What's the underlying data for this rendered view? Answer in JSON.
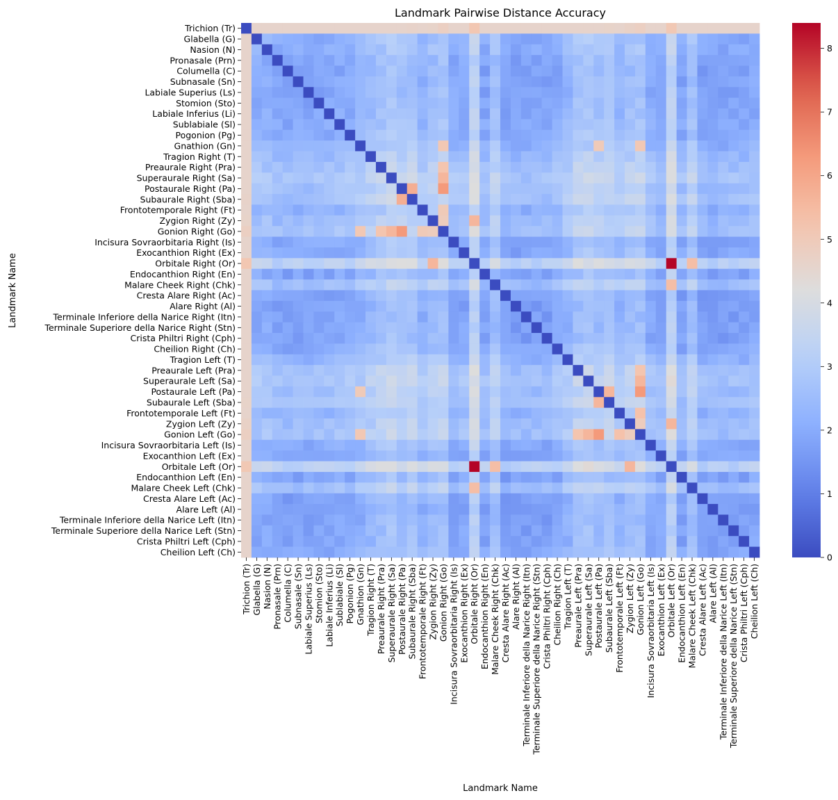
{
  "chart_data": {
    "type": "heatmap",
    "title": "Landmark Pairwise Distance Accuracy",
    "xlabel": "Landmark Name",
    "ylabel": "Landmark Name",
    "colormap": "coolwarm",
    "vmin": 0,
    "vmax": 8.4,
    "colorbar_ticks": [
      0,
      1,
      2,
      3,
      4,
      5,
      6,
      7,
      8
    ],
    "labels": [
      "Trichion (Tr)",
      "Glabella (G)",
      "Nasion (N)",
      "Pronasale (Prn)",
      "Columella (C)",
      "Subnasale (Sn)",
      "Labiale Superius (Ls)",
      "Stomion (Sto)",
      "Labiale Inferius (Li)",
      "Sublabiale (Sl)",
      "Pogonion (Pg)",
      "Gnathion (Gn)",
      "Tragion  Right (T)",
      "Preaurale  Right (Pra)",
      "Superaurale  Right (Sa)",
      "Postaurale  Right (Pa)",
      "Subaurale  Right (Sba)",
      "Frontotemporale  Right (Ft)",
      "Zygion  Right (Zy)",
      "Gonion  Right (Go)",
      "Incisura Sovraorbitaria  Right (Is)",
      "Exocanthion  Right (Ex)",
      "Orbitale  Right (Or)",
      "Endocanthion  Right (En)",
      "Malare Cheek  Right (Chk)",
      "Cresta Alare  Right (Ac)",
      "Alare  Right (Al)",
      "Terminale Inferiore della Narice  Right (Itn)",
      "Terminale Superiore della Narice  Right (Stn)",
      "Crista Philtri  Right (Cph)",
      "Cheilion  Right (Ch)",
      "Tragion  Left (T)",
      "Preaurale  Left (Pra)",
      "Superaurale  Left (Sa)",
      "Postaurale  Left (Pa)",
      "Subaurale  Left (Sba)",
      "Frontotemporale  Left (Ft)",
      "Zygion  Left (Zy)",
      "Gonion  Left (Go)",
      "Incisura Sovraorbitaria  Left (Is)",
      "Exocanthion  Left (Ex)",
      "Orbitale  Left (Or)",
      "Endocanthion  Left (En)",
      "Malare Cheek  Left (Chk)",
      "Cresta Alare  Left (Ac)",
      "Alare  Left (Al)",
      "Terminale Inferiore della Narice  Left (Itn)",
      "Terminale Superiore della Narice  Left (Stn)",
      "Crista Philtri  Left (Cph)",
      "Cheilion  Left (Ch)"
    ],
    "group_levels": [
      5.7,
      2.2,
      2.2,
      1.8,
      1.7,
      1.8,
      1.8,
      1.8,
      1.9,
      2.1,
      2.1,
      2.4,
      2.9,
      3.3,
      3.7,
      3.3,
      3.5,
      2.5,
      3.1,
      3.4,
      2.1,
      2.0,
      4.6,
      1.8,
      3.2,
      1.6,
      1.6,
      1.6,
      1.7,
      1.7,
      2.0,
      2.6,
      3.4,
      3.6,
      3.2,
      3.4,
      2.7,
      3.2,
      3.4,
      2.1,
      2.0,
      4.6,
      1.8,
      3.2,
      1.6,
      1.6,
      1.6,
      1.7,
      1.7,
      2.0
    ],
    "highlight_pairs": [
      {
        "row": "Orbitale  Right (Or)",
        "col": "Orbitale  Left (Or)",
        "value": 8.4
      },
      {
        "row": "Postaurale  Right (Pa)",
        "col": "Gonion  Right (Go)",
        "value": 6.3
      },
      {
        "row": "Postaurale  Left (Pa)",
        "col": "Gonion  Left (Go)",
        "value": 6.3
      },
      {
        "row": "Subaurale  Right (Sba)",
        "col": "Postaurale  Right (Pa)",
        "value": 5.8
      },
      {
        "row": "Subaurale  Left (Sba)",
        "col": "Postaurale  Left (Pa)",
        "value": 5.6
      },
      {
        "row": "Superaurale  Right (Sa)",
        "col": "Gonion  Right (Go)",
        "value": 5.6
      },
      {
        "row": "Superaurale  Left (Sa)",
        "col": "Gonion  Left (Go)",
        "value": 5.6
      },
      {
        "row": "Preaurale  Right (Pra)",
        "col": "Gonion  Right (Go)",
        "value": 5.2
      },
      {
        "row": "Preaurale  Left (Pra)",
        "col": "Gonion  Left (Go)",
        "value": 5.2
      },
      {
        "row": "Zygion  Right (Zy)",
        "col": "Orbitale  Right (Or)",
        "value": 5.6
      },
      {
        "row": "Zygion  Left (Zy)",
        "col": "Orbitale  Left (Or)",
        "value": 5.6
      },
      {
        "row": "Gonion  Right (Go)",
        "col": "Gnathion (Gn)",
        "value": 5.1
      },
      {
        "row": "Gonion  Left (Go)",
        "col": "Gnathion (Gn)",
        "value": 5.1
      },
      {
        "row": "Malare Cheek  Right (Chk)",
        "col": "Orbitale  Left (Or)",
        "value": 5.4
      },
      {
        "row": "Malare Cheek  Left (Chk)",
        "col": "Orbitale  Right (Or)",
        "value": 5.4
      },
      {
        "row": "Postaurale  Left (Pa)",
        "col": "Gnathion (Gn)",
        "value": 5.0
      },
      {
        "row": "Gonion  Left (Go)",
        "col": "Frontotemporale  Left (Ft)",
        "value": 5.3
      },
      {
        "row": "Gonion  Right (Go)",
        "col": "Frontotemporale  Right (Ft)",
        "value": 5.0
      },
      {
        "row": "Gonion  Left (Go)",
        "col": "Zygion  Left (Zy)",
        "value": 4.9
      },
      {
        "row": "Gonion  Right (Go)",
        "col": "Zygion  Right (Zy)",
        "value": 4.9
      }
    ]
  }
}
